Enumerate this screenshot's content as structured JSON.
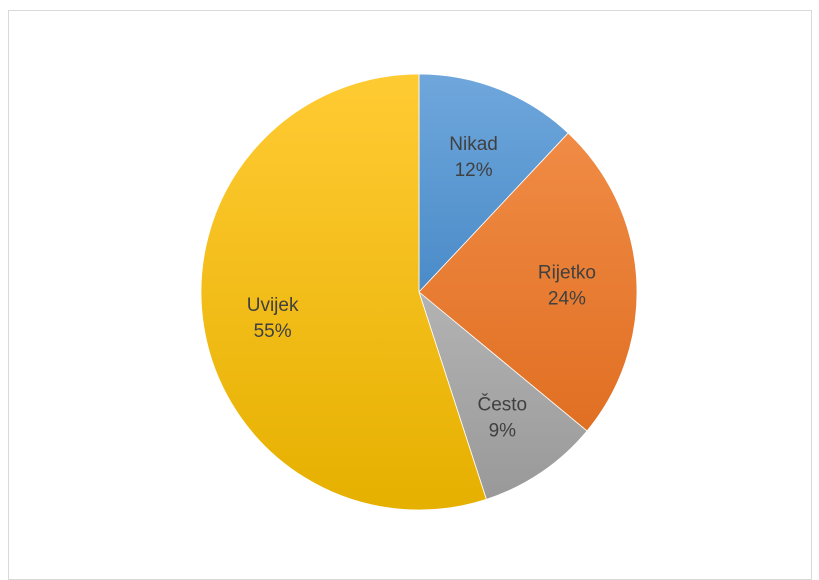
{
  "chart_data": {
    "type": "pie",
    "title": "",
    "slices": [
      {
        "label": "Nikad",
        "percent_label": "12%",
        "value": 12,
        "color": "#5B9BD5",
        "color_light": "#6FA7DC",
        "color_dark": "#4A8BC8"
      },
      {
        "label": "Rijetko",
        "percent_label": "24%",
        "value": 24,
        "color": "#ED7D31",
        "color_light": "#F08B45",
        "color_dark": "#E06F22"
      },
      {
        "label": "Često",
        "percent_label": "9%",
        "value": 9,
        "color": "#A5A5A5",
        "color_light": "#B3B3B3",
        "color_dark": "#999999"
      },
      {
        "label": "Uvijek",
        "percent_label": "55%",
        "value": 55,
        "color": "#FFC000",
        "color_light": "#FFCB33",
        "color_dark": "#E6B000"
      }
    ],
    "legend": "none",
    "data_labels": "category-and-percent"
  }
}
